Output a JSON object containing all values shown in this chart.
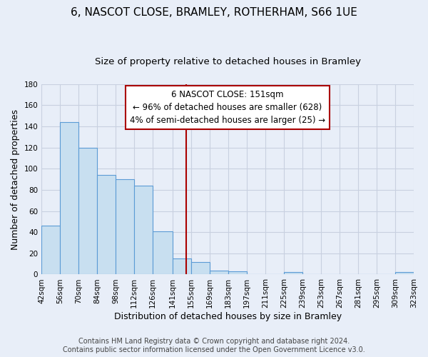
{
  "title": "6, NASCOT CLOSE, BRAMLEY, ROTHERHAM, S66 1UE",
  "subtitle": "Size of property relative to detached houses in Bramley",
  "xlabel": "Distribution of detached houses by size in Bramley",
  "ylabel": "Number of detached properties",
  "bar_edges": [
    42,
    56,
    70,
    84,
    98,
    112,
    126,
    141,
    155,
    169,
    183,
    197,
    211,
    225,
    239,
    253,
    267,
    281,
    295,
    309,
    323
  ],
  "bar_heights": [
    46,
    144,
    120,
    94,
    90,
    84,
    41,
    15,
    12,
    4,
    3,
    0,
    0,
    2,
    0,
    0,
    0,
    0,
    0,
    2
  ],
  "bar_color": "#c8dff0",
  "bar_edge_color": "#5b9bd5",
  "reference_line_x": 151,
  "reference_line_color": "#aa0000",
  "annotation_line1": "6 NASCOT CLOSE: 151sqm",
  "annotation_line2": "← 96% of detached houses are smaller (628)",
  "annotation_line3": "4% of semi-detached houses are larger (25) →",
  "annotation_box_color": "#ffffff",
  "annotation_box_edge_color": "#aa0000",
  "tick_labels": [
    "42sqm",
    "56sqm",
    "70sqm",
    "84sqm",
    "98sqm",
    "112sqm",
    "126sqm",
    "141sqm",
    "155sqm",
    "169sqm",
    "183sqm",
    "197sqm",
    "211sqm",
    "225sqm",
    "239sqm",
    "253sqm",
    "267sqm",
    "281sqm",
    "295sqm",
    "309sqm",
    "323sqm"
  ],
  "ylim": [
    0,
    180
  ],
  "yticks": [
    0,
    20,
    40,
    60,
    80,
    100,
    120,
    140,
    160,
    180
  ],
  "footer_text": "Contains HM Land Registry data © Crown copyright and database right 2024.\nContains public sector information licensed under the Open Government Licence v3.0.",
  "background_color": "#e8eef8",
  "plot_bg_color": "#e8eef8",
  "grid_color": "#c8d0e0",
  "title_fontsize": 11,
  "subtitle_fontsize": 9.5,
  "axis_label_fontsize": 9,
  "tick_fontsize": 7.5,
  "footer_fontsize": 7,
  "annotation_fontsize": 8.5
}
